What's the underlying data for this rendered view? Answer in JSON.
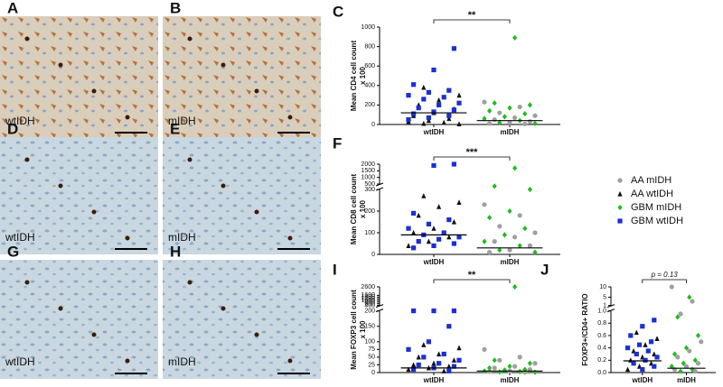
{
  "panels": [
    {
      "letter": "A",
      "label": "wtIDH"
    },
    {
      "letter": "B",
      "label": "mIDH"
    },
    {
      "letter": "D",
      "label": "wtIDH"
    },
    {
      "letter": "E",
      "label": "mIDH"
    },
    {
      "letter": "G",
      "label": "wtIDH"
    },
    {
      "letter": "H",
      "label": "mIDH"
    }
  ],
  "legend": [
    {
      "name": "AA mIDH",
      "color": "#a0a0a0",
      "marker": "circle"
    },
    {
      "name": "AA wtIDH",
      "color": "#111111",
      "marker": "triangle"
    },
    {
      "name": "GBM mIDH",
      "color": "#22bb22",
      "marker": "diamond"
    },
    {
      "name": "GBM wtIDH",
      "color": "#1a2fd6",
      "marker": "square"
    }
  ],
  "chart_data": [
    {
      "type": "strip",
      "panel": "C",
      "ylabel": [
        "Mean CD4 cell count",
        "x 100"
      ],
      "categories": [
        "wtIDH",
        "mIDH"
      ],
      "annotation": "**",
      "ylim": [
        0,
        1000
      ],
      "yticks": [
        0,
        200,
        400,
        600,
        800,
        1000
      ],
      "medians": [
        120,
        40
      ],
      "series": [
        {
          "values": [
            [],
            [
              230,
              180,
              120,
              90,
              70,
              50,
              30,
              20,
              10,
              5
            ]
          ]
        },
        {
          "values": [
            [
              380,
              300,
              250,
              200,
              160,
              120,
              90,
              60,
              40,
              30,
              20,
              10,
              5
            ],
            []
          ]
        },
        {
          "values": [
            [],
            [
              890,
              220,
              200,
              170,
              140,
              110,
              80,
              60,
              40,
              20,
              10
            ]
          ]
        },
        {
          "values": [
            [
              780,
              560,
              410,
              350,
              330,
              300,
              280,
              260,
              220,
              200,
              170,
              150,
              130,
              110,
              90,
              70,
              50
            ],
            []
          ]
        }
      ]
    },
    {
      "type": "strip",
      "panel": "F",
      "ylabel": [
        "Mean CD8 cell count",
        "x 100"
      ],
      "categories": [
        "wtIDH",
        "mIDH"
      ],
      "annotation": "***",
      "ysegments": [
        [
          0,
          300
        ],
        [
          500,
          2000
        ]
      ],
      "yticks": [
        [
          0,
          100,
          200,
          300
        ],
        [
          500,
          1000,
          1500,
          2000
        ]
      ],
      "medians": [
        90,
        30
      ],
      "series": [
        {
          "values": [
            [],
            [
              230,
              180,
              130,
              100,
              80,
              60,
              40,
              20,
              10
            ]
          ]
        },
        {
          "values": [
            [
              270,
              240,
              220,
              180,
              150,
              120,
              100,
              80,
              60,
              40
            ],
            []
          ]
        },
        {
          "values": [
            [],
            [
              1700,
              340,
              300,
              200,
              170,
              120,
              90,
              60,
              40,
              20,
              10
            ]
          ]
        },
        {
          "values": [
            [
              2000,
              1900,
              190,
              160,
              140,
              120,
              100,
              90,
              80,
              70,
              60,
              50,
              40,
              30
            ],
            []
          ]
        }
      ]
    },
    {
      "type": "strip",
      "panel": "I",
      "ylabel": [
        "Mean FOXP3 cell count",
        "x 100"
      ],
      "categories": [
        "wtIDH",
        "mIDH"
      ],
      "annotation": "**",
      "ysegments": [
        [
          0,
          200
        ],
        [
          400,
          2600
        ]
      ],
      "yticks": [
        [
          0,
          25,
          50,
          75,
          100,
          150,
          200
        ],
        [
          400,
          600,
          800,
          1000,
          1200,
          1400,
          1600,
          2600
        ]
      ],
      "medians": [
        15,
        5
      ],
      "series": [
        {
          "values": [
            [],
            [
              75,
              50,
              40,
              30,
              20,
              15,
              10,
              5,
              3,
              1
            ]
          ]
        },
        {
          "values": [
            [
              90,
              80,
              60,
              50,
              40,
              30,
              25,
              20,
              15,
              10,
              5
            ],
            []
          ]
        },
        {
          "values": [
            [],
            [
              2600,
              40,
              30,
              20,
              15,
              10,
              8,
              5,
              3,
              2,
              1
            ]
          ]
        },
        {
          "values": [
            [
              200,
              200,
              200,
              150,
              100,
              75,
              60,
              50,
              40,
              30,
              25,
              20,
              15,
              10,
              5
            ],
            []
          ]
        }
      ]
    },
    {
      "type": "strip",
      "panel": "J",
      "ylabel": [
        "FOXP3+/CD4+ RATIO"
      ],
      "categories": [
        "wtIDH",
        "mIDH"
      ],
      "annotation": "p = 0.13",
      "ysegments": [
        [
          0,
          1
        ],
        [
          1,
          10
        ]
      ],
      "yticks": [
        [
          {
            "value": 0,
            "label": "0.0"
          },
          0.2,
          0.4,
          0.6,
          0.8,
          {
            "value": 1,
            "label": "1.0"
          }
        ],
        [
          1,
          5,
          10
        ]
      ],
      "medians": [
        0.19,
        0.07
      ],
      "series": [
        {
          "values": [
            [],
            [
              10,
              3,
              0.95,
              0.5,
              0.35,
              0.25,
              0.15,
              0.1,
              0.05,
              0.02
            ]
          ]
        },
        {
          "values": [
            [
              0.65,
              0.55,
              0.45,
              0.35,
              0.3,
              0.25,
              0.2,
              0.15,
              0.1,
              0.05
            ],
            []
          ]
        },
        {
          "values": [
            [],
            [
              5,
              0.9,
              0.6,
              0.4,
              0.3,
              0.2,
              0.15,
              0.1,
              0.05,
              0.02
            ]
          ]
        },
        {
          "values": [
            [
              0.85,
              0.75,
              0.6,
              0.5,
              0.45,
              0.4,
              0.35,
              0.3,
              0.25,
              0.2,
              0.15,
              0.1,
              0.05
            ],
            []
          ]
        }
      ]
    }
  ]
}
